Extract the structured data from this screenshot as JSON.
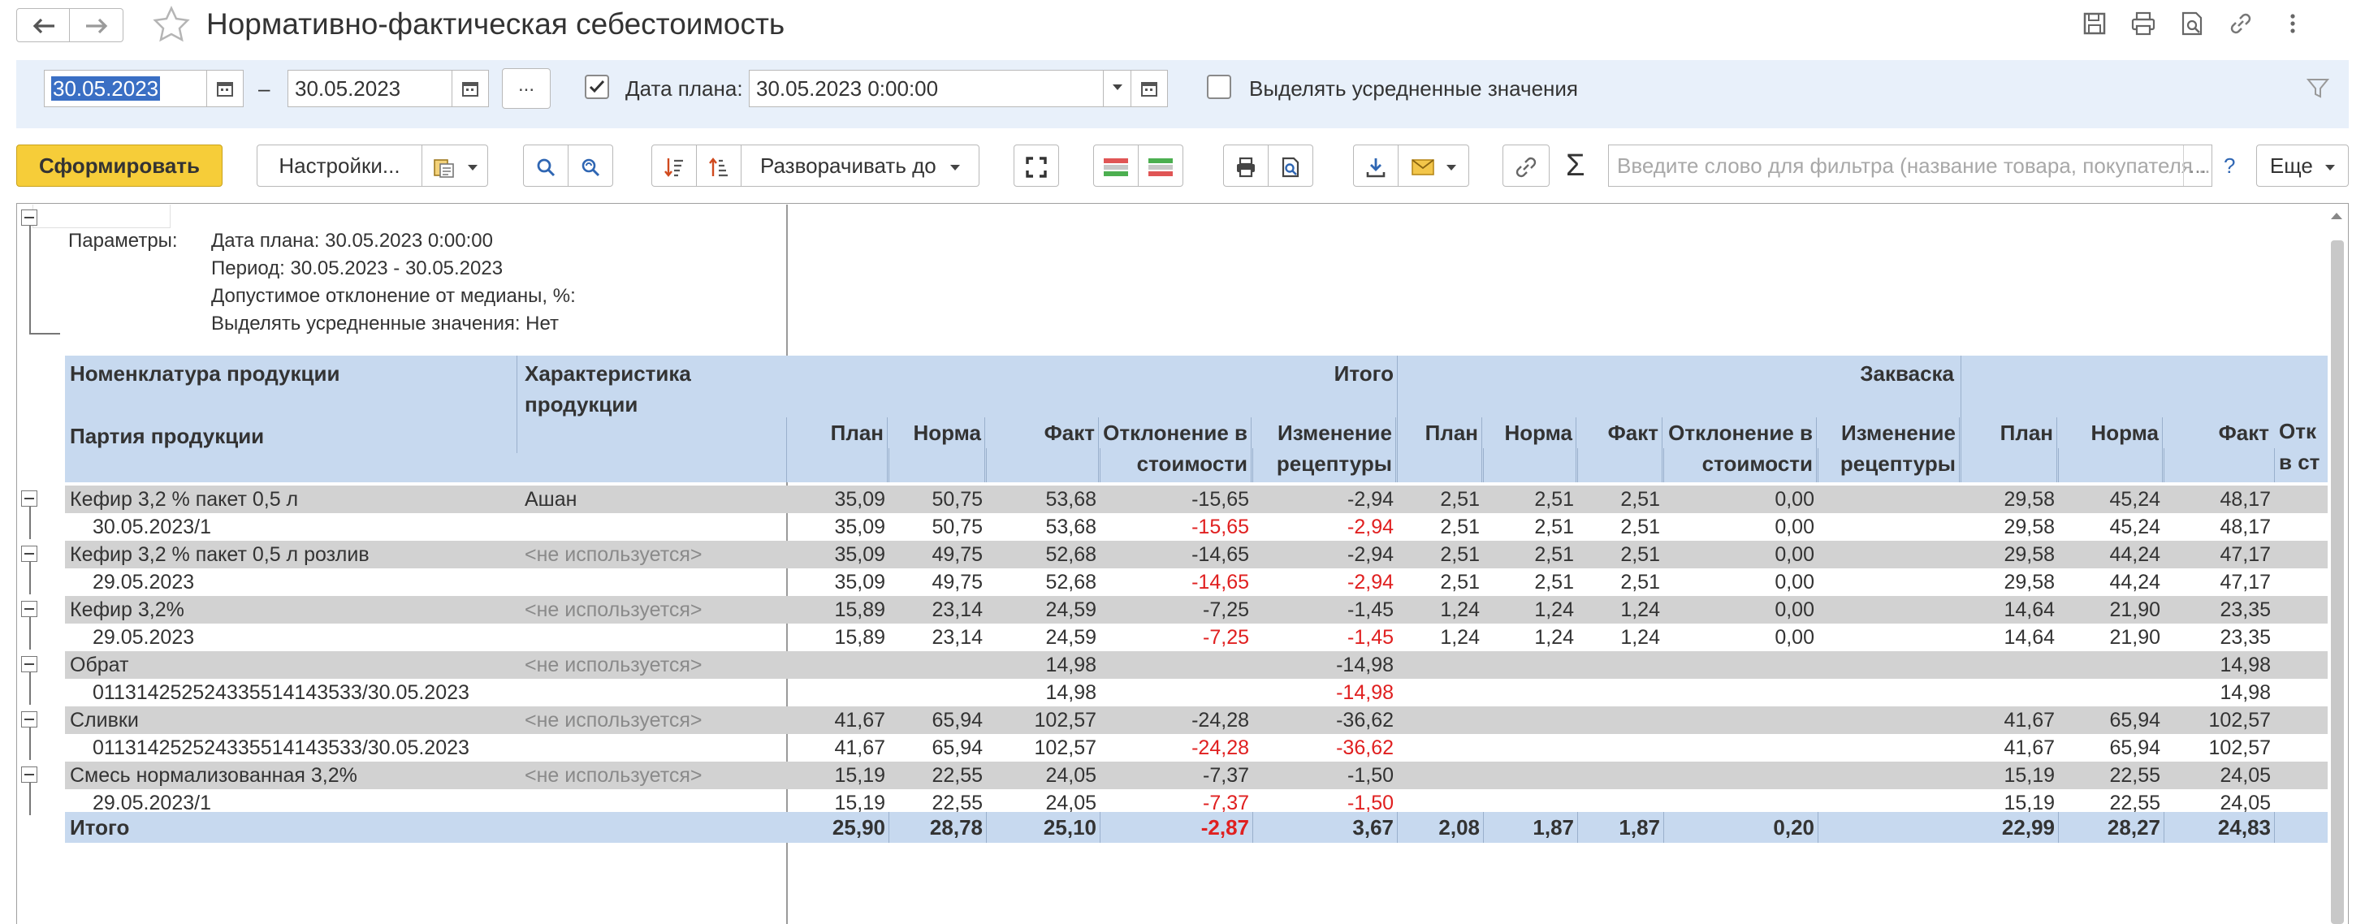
{
  "window": {
    "title": "Нормативно-фактическая себестоимость"
  },
  "period": {
    "date_from": "30.05.2023",
    "dash": "–",
    "date_to": "30.05.2023",
    "dots": "...",
    "plan_date_checked": true,
    "plan_date_label": "Дата плана:",
    "plan_date": "30.05.2023  0:00:00",
    "avg_checked": false,
    "avg_label": "Выделять усредненные значения"
  },
  "toolbar": {
    "generate": "Сформировать",
    "settings": "Настройки...",
    "expand_to": "Разворачивать до",
    "search_placeholder": "Введите слово для фильтра (название товара, покупателя ...",
    "search_more": "...",
    "help": "?",
    "more": "Еще",
    "sigma": "Σ"
  },
  "params": {
    "label": "Параметры:",
    "lines": [
      "Дата плана: 30.05.2023 0:00:00",
      "Период: 30.05.2023 - 30.05.2023",
      "Допустимое отклонение от медианы, %:",
      "Выделять усредненные значения: Нет"
    ]
  },
  "table": {
    "headers": {
      "nomenclature": "Номенклатура продукции",
      "characteristic": "Характеристика продукции",
      "batch": "Партия продукции",
      "group_total": "Итого",
      "group_starter": "Закваска",
      "plan": "План",
      "norm": "Норма",
      "fact": "Факт",
      "deviation": "Отклонение в стоимости",
      "recipe_change": "Изменение рецептуры",
      "cut_label": "Отк в ст"
    },
    "rows": [
      {
        "type": "group",
        "name": "Кефир 3,2 % пакет 0,5 л",
        "char": "Ашан",
        "char_gray": false,
        "v": [
          "35,09",
          "50,75",
          "53,68",
          "-15,65",
          "-2,94",
          "2,51",
          "2,51",
          "2,51",
          "0,00",
          "",
          "29,58",
          "45,24",
          "48,17"
        ]
      },
      {
        "type": "detail",
        "name": "30.05.2023/1",
        "char": "",
        "v": [
          "35,09",
          "50,75",
          "53,68",
          "-15,65",
          "-2,94",
          "2,51",
          "2,51",
          "2,51",
          "0,00",
          "",
          "29,58",
          "45,24",
          "48,17"
        ]
      },
      {
        "type": "group",
        "name": "Кефир 3,2 % пакет 0,5 л розлив",
        "char": "<не используется>",
        "char_gray": true,
        "v": [
          "35,09",
          "49,75",
          "52,68",
          "-14,65",
          "-2,94",
          "2,51",
          "2,51",
          "2,51",
          "0,00",
          "",
          "29,58",
          "44,24",
          "47,17"
        ]
      },
      {
        "type": "detail",
        "name": "29.05.2023",
        "char": "",
        "v": [
          "35,09",
          "49,75",
          "52,68",
          "-14,65",
          "-2,94",
          "2,51",
          "2,51",
          "2,51",
          "0,00",
          "",
          "29,58",
          "44,24",
          "47,17"
        ]
      },
      {
        "type": "group",
        "name": "Кефир 3,2%",
        "char": "<не используется>",
        "char_gray": true,
        "v": [
          "15,89",
          "23,14",
          "24,59",
          "-7,25",
          "-1,45",
          "1,24",
          "1,24",
          "1,24",
          "0,00",
          "",
          "14,64",
          "21,90",
          "23,35"
        ]
      },
      {
        "type": "detail",
        "name": "29.05.2023",
        "char": "",
        "v": [
          "15,89",
          "23,14",
          "24,59",
          "-7,25",
          "-1,45",
          "1,24",
          "1,24",
          "1,24",
          "0,00",
          "",
          "14,64",
          "21,90",
          "23,35"
        ]
      },
      {
        "type": "group",
        "name": "Обрат",
        "char": "<не используется>",
        "char_gray": true,
        "v": [
          "",
          "",
          "14,98",
          "",
          "-14,98",
          "",
          "",
          "",
          "",
          "",
          "",
          "",
          "14,98"
        ]
      },
      {
        "type": "detail",
        "name": "011314252524335514143533/30.05.2023",
        "char": "",
        "v": [
          "",
          "",
          "14,98",
          "",
          "-14,98",
          "",
          "",
          "",
          "",
          "",
          "",
          "",
          "14,98"
        ]
      },
      {
        "type": "group",
        "name": "Сливки",
        "char": "<не используется>",
        "char_gray": true,
        "v": [
          "41,67",
          "65,94",
          "102,57",
          "-24,28",
          "-36,62",
          "",
          "",
          "",
          "",
          "",
          "41,67",
          "65,94",
          "102,57"
        ]
      },
      {
        "type": "detail",
        "name": "011314252524335514143533/30.05.2023",
        "char": "",
        "v": [
          "41,67",
          "65,94",
          "102,57",
          "-24,28",
          "-36,62",
          "",
          "",
          "",
          "",
          "",
          "41,67",
          "65,94",
          "102,57"
        ]
      },
      {
        "type": "group",
        "name": "Смесь нормализованная 3,2%",
        "char": "<не используется>",
        "char_gray": true,
        "v": [
          "15,19",
          "22,55",
          "24,05",
          "-7,37",
          "-1,50",
          "",
          "",
          "",
          "",
          "",
          "15,19",
          "22,55",
          "24,05"
        ]
      },
      {
        "type": "detail",
        "name": "29.05.2023/1",
        "char": "",
        "v": [
          "15,19",
          "22,55",
          "24,05",
          "-7,37",
          "-1,50",
          "",
          "",
          "",
          "",
          "",
          "15,19",
          "22,55",
          "24,05"
        ]
      }
    ],
    "total": {
      "label": "Итого",
      "v": [
        "25,90",
        "28,78",
        "25,10",
        "-2,87",
        "3,67",
        "2,08",
        "1,87",
        "1,87",
        "0,20",
        "",
        "22,99",
        "28,27",
        "24,83"
      ]
    }
  },
  "colors": {
    "negative": "#e02020",
    "header_bg": "#c7d9ef",
    "group_bg": "#d2d2d2",
    "accent_button": "#f6cd39"
  }
}
